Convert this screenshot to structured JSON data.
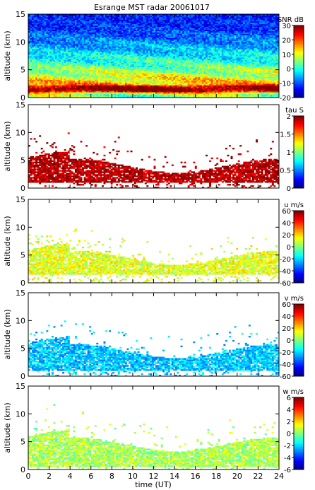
{
  "title": "Esrange MST radar 20061017",
  "chart_data": [
    {
      "type": "heatmap",
      "panel": 1,
      "quantity": "SNR",
      "colorbar_label": "SNR dB",
      "colorbar_ticks": [
        "30",
        "20",
        "10",
        "0",
        "-10",
        "-20"
      ],
      "colorbar_range": [
        -20,
        30
      ],
      "ylabel": "altitude (km)",
      "yticks": [
        "0",
        "5",
        "10",
        "15"
      ],
      "ylim": [
        0,
        15
      ],
      "xlim": [
        0,
        24
      ],
      "profile": [
        {
          "altitude_km": 0.5,
          "value": 5
        },
        {
          "altitude_km": 1.5,
          "value": 27
        },
        {
          "altitude_km": 2.5,
          "value": 15
        },
        {
          "altitude_km": 4.0,
          "value": 9
        },
        {
          "altitude_km": 6.0,
          "value": 2
        },
        {
          "altitude_km": 9.0,
          "value": -5
        },
        {
          "altitude_km": 13.0,
          "value": -12
        }
      ]
    },
    {
      "type": "heatmap",
      "panel": 2,
      "quantity": "tau",
      "colorbar_label": "tau S",
      "colorbar_ticks": [
        "2",
        "1.5",
        "1",
        "0.5",
        "0"
      ],
      "colorbar_range": [
        0,
        2
      ],
      "ylabel": "altitude (km)",
      "yticks": [
        "0",
        "5",
        "10",
        "15"
      ],
      "ylim": [
        0,
        15
      ],
      "xlim": [
        0,
        24
      ],
      "typical_value": 1.9,
      "typical_altitude_km": [
        1.5,
        4
      ]
    },
    {
      "type": "heatmap",
      "panel": 3,
      "quantity": "u",
      "colorbar_label": "u m/s",
      "colorbar_ticks": [
        "60",
        "40",
        "20",
        "0",
        "-20",
        "-40",
        "-60"
      ],
      "colorbar_range": [
        -60,
        60
      ],
      "ylabel": "altitude (km)",
      "yticks": [
        "0",
        "5",
        "10",
        "15"
      ],
      "ylim": [
        0,
        15
      ],
      "xlim": [
        0,
        24
      ],
      "typical_value": 12,
      "typical_altitude_km": [
        2,
        4.5
      ]
    },
    {
      "type": "heatmap",
      "panel": 4,
      "quantity": "v",
      "colorbar_label": "v m/s",
      "colorbar_ticks": [
        "60",
        "40",
        "20",
        "0",
        "-20",
        "-40",
        "-60"
      ],
      "colorbar_range": [
        -60,
        60
      ],
      "ylabel": "altitude (km)",
      "yticks": [
        "0",
        "5",
        "10",
        "15"
      ],
      "ylim": [
        0,
        15
      ],
      "xlim": [
        0,
        24
      ],
      "typical_value": -22,
      "typical_altitude_km": [
        1.5,
        4.5
      ]
    },
    {
      "type": "heatmap",
      "panel": 5,
      "quantity": "w",
      "colorbar_label": "w m/s",
      "colorbar_ticks": [
        "6",
        "4",
        "2",
        "0",
        "-2",
        "-4",
        "-6"
      ],
      "colorbar_range": [
        -6,
        6
      ],
      "ylabel": "altitude (km)",
      "yticks": [
        "0",
        "5",
        "10",
        "15"
      ],
      "ylim": [
        0,
        15
      ],
      "xlim": [
        0,
        24
      ],
      "xlabel": "time (UT)",
      "xticks": [
        "0",
        "2",
        "4",
        "6",
        "8",
        "10",
        "12",
        "14",
        "16",
        "18",
        "20",
        "22",
        "24"
      ],
      "typical_value": 0.5,
      "typical_altitude_km": [
        1,
        4.5
      ]
    }
  ]
}
